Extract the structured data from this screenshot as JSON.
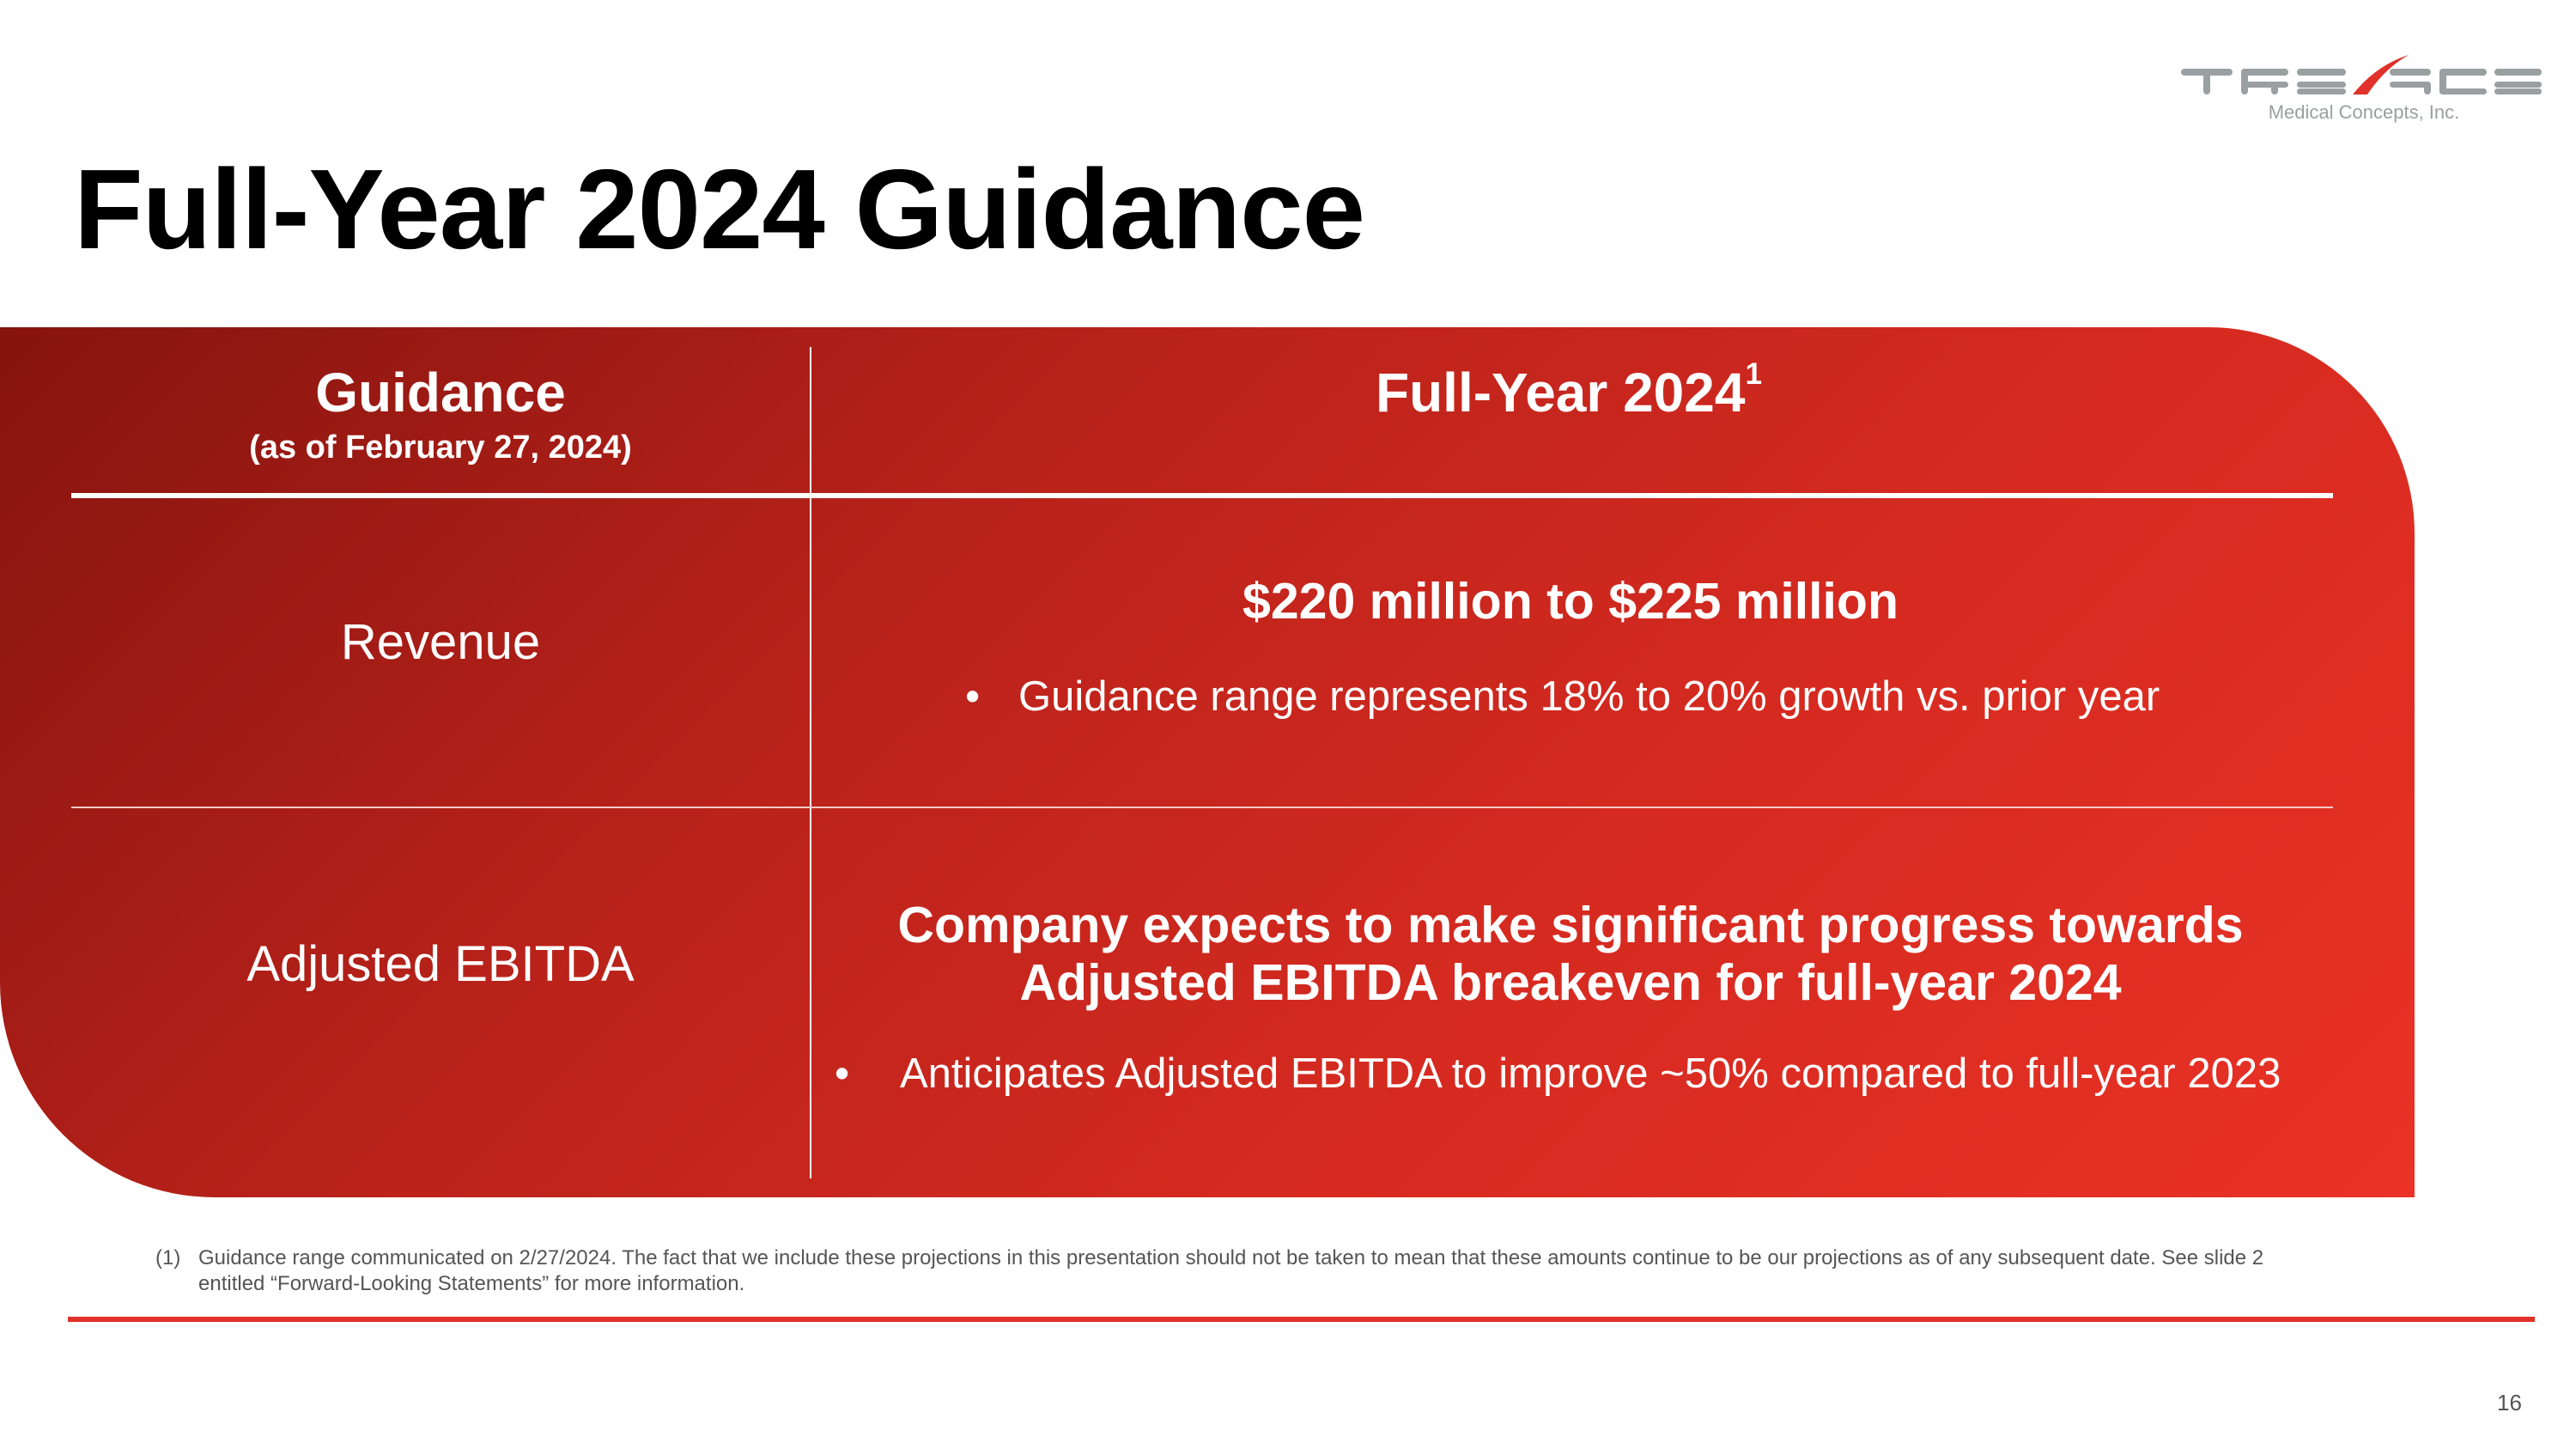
{
  "logo": {
    "brand": "TREACE",
    "tagline": "Medical Concepts, Inc.",
    "accent_color": "#e0322a",
    "gray_color": "#9a9fa1"
  },
  "title": "Full-Year 2024 Guidance",
  "table": {
    "col1_header": "Guidance",
    "col1_subheader": "(as of February 27, 2024)",
    "col2_header": "Full-Year 2024",
    "col2_header_sup": "1",
    "rows": [
      {
        "label": "Revenue",
        "headline_lines": [
          "$220 million to $225 million"
        ],
        "bullet": "Guidance range represents 18% to 20% growth vs. prior year"
      },
      {
        "label": "Adjusted EBITDA",
        "headline_lines": [
          "Company expects to make significant progress towards",
          "Adjusted EBITDA breakeven for full-year 2024"
        ],
        "bullet": "Anticipates Adjusted EBITDA to improve ~50% compared to full-year 2023"
      }
    ]
  },
  "footnote": {
    "marker": "(1)",
    "line1": "Guidance range communicated on 2/27/2024. The fact that we include these projections in this presentation should not be taken to mean that these amounts continue to be our projections as of any subsequent date. See slide 2",
    "line2": "entitled “Forward-Looking Statements” for more information."
  },
  "page_number": "16",
  "bullet_glyph": "•"
}
